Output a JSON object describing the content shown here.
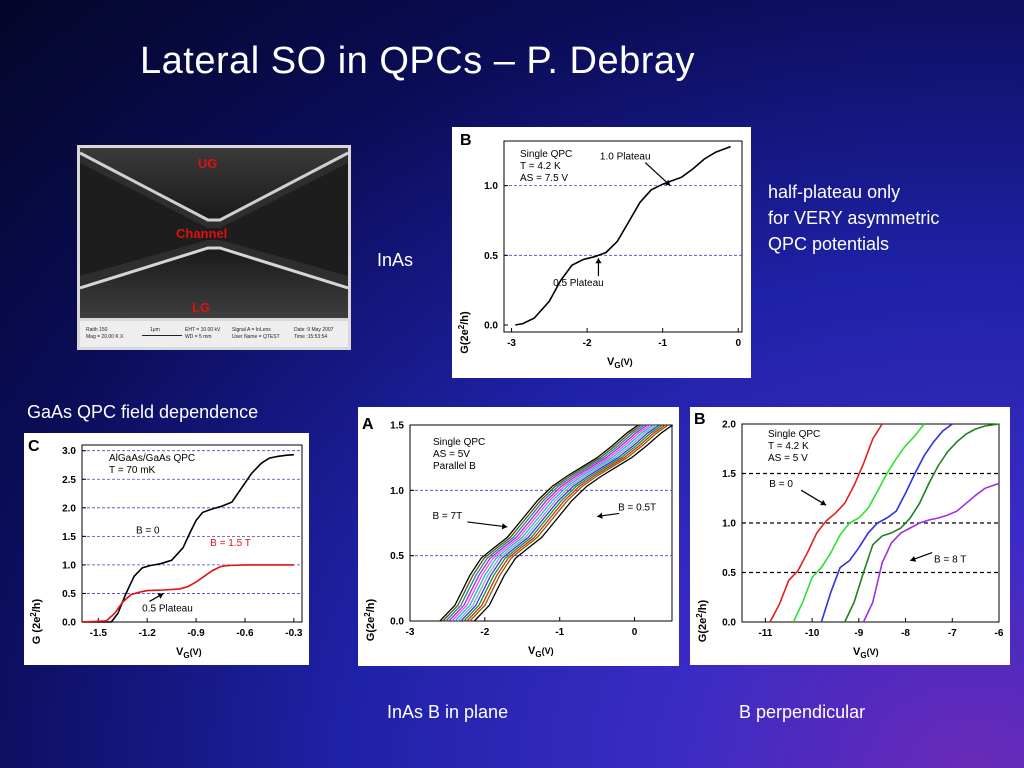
{
  "title": "Lateral SO in QPCs – P. Debray",
  "texts": {
    "inas": "InAs",
    "half_plateau": [
      "half-plateau only",
      "for VERY asymmetric",
      "QPC potentials"
    ],
    "gaas_caption": "GaAs QPC field dependence",
    "inas_b_plane": "InAs  B in plane",
    "b_perp": "B perpendicular"
  },
  "sem_image": {
    "labels": {
      "ug": "UG",
      "channel": "Channel",
      "lg": "LG"
    },
    "info": {
      "c1a": "Raith 150",
      "c1b": "Mag =  20.00 K X",
      "c2a": "1μm",
      "c2b": "",
      "c3a": "EHT = 10.00 kV",
      "c3b": "WD =   5 mm",
      "c4a": "Signal A = InLens",
      "c4b": "User Name = QTEST",
      "c5a": "Date :9 May 2007",
      "c5b": "Time :15:53:54"
    }
  },
  "colors": {
    "dashed_line": "#4040d0",
    "gaas_b15": "#e01010",
    "perp_series": [
      "#e02020",
      "#30e030",
      "#3030e0",
      "#208020",
      "#a030e0"
    ]
  },
  "chart_data": [
    {
      "id": "inas_single",
      "type": "line",
      "panel_letter": "B",
      "annotation": [
        "Single QPC",
        "T = 4.2 K",
        "AS = 7.5 V"
      ],
      "xlabel_main": "V",
      "xlabel_sub": "G",
      "xlabel_unit": "(V)",
      "ylabel": "G(2e²/h)",
      "ylabel_parts": {
        "a": "G(2e",
        "sup": "2",
        "b": "/h)"
      },
      "xlim": [
        -3.1,
        0.05
      ],
      "ylim": [
        -0.05,
        1.32
      ],
      "xticks": [
        -3,
        -2,
        -1,
        0
      ],
      "xtick_labels": [
        "-3",
        "-2",
        "-1",
        "0"
      ],
      "yticks": [
        0.0,
        0.5,
        1.0
      ],
      "ytick_labels": [
        "0.0",
        "0.5",
        "1.0"
      ],
      "dashed_y": [
        0.5,
        1.0
      ],
      "callouts": [
        {
          "text": "1.0 Plateau",
          "x": -0.9,
          "y": 1.0
        },
        {
          "text": "0.5 Plateau",
          "x": -1.85,
          "y": 0.48
        }
      ],
      "series": [
        {
          "x": [
            -2.95,
            -2.85,
            -2.7,
            -2.5,
            -2.35,
            -2.2,
            -2.05,
            -1.9,
            -1.75,
            -1.6,
            -1.45,
            -1.3,
            -1.15,
            -1.0,
            -0.9,
            -0.75,
            -0.6,
            -0.45,
            -0.3,
            -0.15,
            -0.1
          ],
          "y": [
            0.0,
            0.01,
            0.05,
            0.17,
            0.32,
            0.43,
            0.47,
            0.49,
            0.52,
            0.6,
            0.74,
            0.88,
            0.97,
            1.01,
            1.03,
            1.06,
            1.12,
            1.19,
            1.24,
            1.27,
            1.28
          ]
        }
      ]
    },
    {
      "id": "gaas_field",
      "type": "line",
      "panel_letter": "C",
      "annotation": [
        "AlGaAs/GaAs QPC",
        "T = 70 mK"
      ],
      "xlabel_main": "V",
      "xlabel_sub": "G",
      "xlabel_unit": "(V)",
      "ylabel": "G (2e²/h)",
      "ylabel_parts": {
        "a": "G (2e",
        "sup": "2",
        "b": "/h)"
      },
      "xlim": [
        -1.6,
        -0.25
      ],
      "ylim": [
        0.0,
        3.1
      ],
      "xticks": [
        -1.5,
        -1.2,
        -0.9,
        -0.6,
        -0.3
      ],
      "xtick_labels": [
        "-1.5",
        "-1.2",
        "-0.9",
        "-0.6",
        "-0.3"
      ],
      "yticks": [
        0.0,
        0.5,
        1.0,
        1.5,
        2.0,
        2.5,
        3.0
      ],
      "ytick_labels": [
        "0.0",
        "0.5",
        "1.0",
        "1.5",
        "2.0",
        "2.5",
        "3.0"
      ],
      "dashed_y": [
        0.5,
        1.0,
        1.5,
        2.0,
        2.5,
        3.0
      ],
      "callouts": [
        {
          "text": "B = 0",
          "x": -1.0,
          "y": 1.6
        },
        {
          "text": "B = 1.5 T",
          "x": -0.75,
          "y": 1.1
        },
        {
          "text": "0.5 Plateau",
          "x": -1.1,
          "y": 0.5
        }
      ],
      "series": [
        {
          "name": "B = 0",
          "x": [
            -1.6,
            -1.42,
            -1.38,
            -1.33,
            -1.28,
            -1.23,
            -1.18,
            -1.12,
            -1.05,
            -0.98,
            -0.94,
            -0.9,
            -0.86,
            -0.8,
            -0.74,
            -0.68,
            -0.62,
            -0.56,
            -0.5,
            -0.45,
            -0.4,
            -0.35,
            -0.3
          ],
          "y": [
            0.0,
            0.0,
            0.15,
            0.5,
            0.8,
            0.95,
            0.99,
            1.02,
            1.08,
            1.3,
            1.55,
            1.78,
            1.92,
            1.98,
            2.03,
            2.1,
            2.35,
            2.6,
            2.78,
            2.87,
            2.9,
            2.92,
            2.93
          ]
        },
        {
          "name": "B = 1.5 T",
          "x": [
            -1.6,
            -1.45,
            -1.4,
            -1.35,
            -1.3,
            -1.25,
            -1.2,
            -1.1,
            -1.0,
            -0.95,
            -0.9,
            -0.85,
            -0.8,
            -0.75,
            -0.7,
            -0.6,
            -0.5,
            -0.4,
            -0.3
          ],
          "y": [
            0.0,
            0.02,
            0.15,
            0.35,
            0.48,
            0.52,
            0.55,
            0.56,
            0.58,
            0.62,
            0.7,
            0.8,
            0.9,
            0.97,
            0.99,
            1.0,
            1.0,
            1.0,
            1.0
          ]
        }
      ]
    },
    {
      "id": "inas_b_plane",
      "type": "line",
      "panel_letter": "A",
      "annotation": [
        "Single QPC",
        "AS = 5V",
        "Parallel B"
      ],
      "xlabel_main": "V",
      "xlabel_sub": "G",
      "xlabel_unit": "(V)",
      "ylabel": "G(2e²/h)",
      "ylabel_parts": {
        "a": "G(2e",
        "sup": "2",
        "b": "/h)"
      },
      "xlim": [
        -3.0,
        0.5
      ],
      "ylim": [
        0.0,
        1.5
      ],
      "xticks": [
        -3,
        -2,
        -1,
        0
      ],
      "xtick_labels": [
        "-3",
        "-2",
        "-1",
        "0"
      ],
      "yticks": [
        0.0,
        0.5,
        1.0,
        1.5
      ],
      "ytick_labels": [
        "0.0",
        "0.5",
        "1.0",
        "1.5"
      ],
      "dashed_y": [
        0.5,
        1.0
      ],
      "callouts": [
        {
          "text": "B = 7T",
          "x": -1.7,
          "y": 0.72
        },
        {
          "text": "B = 0.5T",
          "x": -0.5,
          "y": 0.8
        }
      ],
      "base_curve": {
        "x": [
          -2.6,
          -2.4,
          -2.2,
          -2.05,
          -1.9,
          -1.7,
          -1.5,
          -1.3,
          -1.1,
          -0.9,
          -0.7,
          -0.5,
          -0.3,
          -0.1,
          0.05
        ],
        "y": [
          0.0,
          0.12,
          0.35,
          0.48,
          0.55,
          0.64,
          0.78,
          0.92,
          1.03,
          1.11,
          1.18,
          1.25,
          1.34,
          1.44,
          1.5
        ]
      },
      "series": [
        {
          "name": "B = 7T",
          "shift": 0.0,
          "color": "#000000"
        },
        {
          "name": "",
          "shift": 0.04,
          "color": "#555500"
        },
        {
          "name": "",
          "shift": 0.08,
          "color": "#2080a0"
        },
        {
          "name": "",
          "shift": 0.12,
          "color": "#a030c0"
        },
        {
          "name": "",
          "shift": 0.16,
          "color": "#ff40ff"
        },
        {
          "name": "",
          "shift": 0.2,
          "color": "#00c0e0"
        },
        {
          "name": "",
          "shift": 0.24,
          "color": "#a0a0a0"
        },
        {
          "name": "",
          "shift": 0.28,
          "color": "#3030ff"
        },
        {
          "name": "",
          "shift": 0.32,
          "color": "#00a000"
        },
        {
          "name": "",
          "shift": 0.36,
          "color": "#e02020"
        },
        {
          "name": "",
          "shift": 0.4,
          "color": "#806000"
        },
        {
          "name": "B = 0.5T",
          "shift": 0.46,
          "color": "#000000"
        }
      ]
    },
    {
      "id": "inas_b_perp",
      "type": "line",
      "panel_letter": "B",
      "annotation": [
        "Single QPC",
        "T = 4.2 K",
        "AS = 5 V"
      ],
      "xlabel_main": "V",
      "xlabel_sub": "G",
      "xlabel_unit": "(V)",
      "ylabel": "G(2e²/h)",
      "ylabel_parts": {
        "a": "G(2e",
        "sup": "2",
        "b": "/h)"
      },
      "xlim": [
        -11.5,
        -6.0
      ],
      "ylim": [
        0.0,
        2.0
      ],
      "xticks": [
        -11,
        -10,
        -9,
        -8,
        -7,
        -6
      ],
      "xtick_labels": [
        "-11",
        "-10",
        "-9",
        "-8",
        "-7",
        "-6"
      ],
      "yticks": [
        0.0,
        0.5,
        1.0,
        1.5,
        2.0
      ],
      "ytick_labels": [
        "0.0",
        "0.5",
        "1.0",
        "1.5",
        "2.0"
      ],
      "dashed_y": [
        0.5,
        1.0,
        1.5
      ],
      "callouts": [
        {
          "text": "B = 0",
          "x": -9.7,
          "y": 1.18
        },
        {
          "text": "B = 8 T",
          "x": -7.9,
          "y": 0.62
        }
      ],
      "series": [
        {
          "name": "B = 0",
          "x": [
            -10.9,
            -10.7,
            -10.5,
            -10.3,
            -10.1,
            -9.9,
            -9.7,
            -9.5,
            -9.3,
            -9.1,
            -8.9,
            -8.7,
            -8.5
          ],
          "y": [
            0.0,
            0.18,
            0.42,
            0.52,
            0.7,
            0.9,
            1.02,
            1.1,
            1.2,
            1.38,
            1.6,
            1.85,
            2.0
          ]
        },
        {
          "name": "",
          "x": [
            -10.4,
            -10.2,
            -10.0,
            -9.8,
            -9.6,
            -9.4,
            -9.2,
            -9.0,
            -8.8,
            -8.6,
            -8.4,
            -8.2,
            -8.0,
            -7.8,
            -7.6
          ],
          "y": [
            0.0,
            0.2,
            0.45,
            0.55,
            0.7,
            0.88,
            1.0,
            1.05,
            1.15,
            1.32,
            1.5,
            1.65,
            1.78,
            1.88,
            2.0
          ]
        },
        {
          "name": "",
          "x": [
            -9.8,
            -9.6,
            -9.4,
            -9.2,
            -9.0,
            -8.8,
            -8.6,
            -8.4,
            -8.2,
            -8.0,
            -7.8,
            -7.6,
            -7.4,
            -7.2,
            -7.0
          ],
          "y": [
            0.0,
            0.3,
            0.55,
            0.62,
            0.75,
            0.9,
            1.0,
            1.05,
            1.12,
            1.3,
            1.5,
            1.68,
            1.82,
            1.93,
            2.0
          ]
        },
        {
          "name": "",
          "x": [
            -9.3,
            -9.1,
            -8.9,
            -8.7,
            -8.5,
            -8.3,
            -8.1,
            -7.9,
            -7.7,
            -7.5,
            -7.3,
            -7.1,
            -6.9,
            -6.7,
            -6.5,
            -6.3,
            -6.0
          ],
          "y": [
            0.0,
            0.2,
            0.5,
            0.78,
            0.87,
            0.9,
            0.95,
            1.05,
            1.2,
            1.4,
            1.58,
            1.72,
            1.82,
            1.9,
            1.95,
            1.98,
            2.0
          ]
        },
        {
          "name": "B = 8 T",
          "x": [
            -8.9,
            -8.7,
            -8.5,
            -8.3,
            -8.1,
            -7.9,
            -7.7,
            -7.5,
            -7.3,
            -7.1,
            -6.9,
            -6.7,
            -6.5,
            -6.3,
            -6.0
          ],
          "y": [
            0.0,
            0.2,
            0.6,
            0.8,
            0.9,
            0.95,
            1.0,
            1.03,
            1.05,
            1.08,
            1.12,
            1.2,
            1.28,
            1.35,
            1.4
          ]
        }
      ]
    }
  ]
}
